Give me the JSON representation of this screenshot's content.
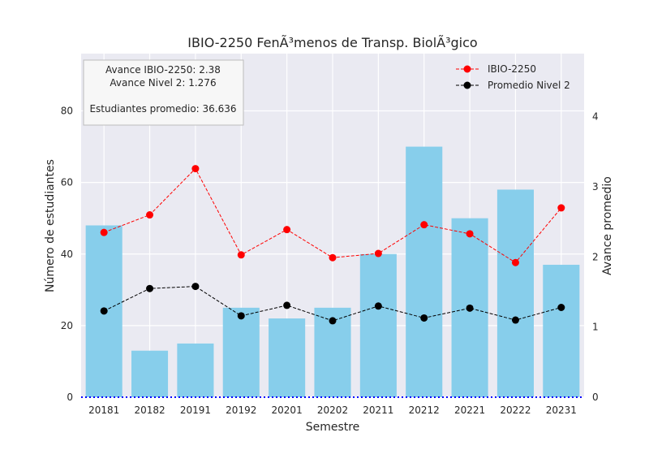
{
  "chart_data": {
    "type": "bar+line",
    "title": "IBIO-2250 FenÃ³menos de Transp. BiolÃ³gico",
    "xlabel": "Semestre",
    "ylabel_left": "Número de estudiantes",
    "ylabel_right": "Avance promedio",
    "categories": [
      "20181",
      "20182",
      "20191",
      "20192",
      "20201",
      "20202",
      "20211",
      "20212",
      "20221",
      "20222",
      "20231"
    ],
    "bars": {
      "name": "Estudiantes",
      "values": [
        48,
        13,
        15,
        25,
        22,
        25,
        40,
        70,
        50,
        58,
        37
      ],
      "color": "#87ceeb"
    },
    "lines": [
      {
        "name": "IBIO-2250",
        "values": [
          2.35,
          2.6,
          3.26,
          2.03,
          2.39,
          1.99,
          2.05,
          2.46,
          2.33,
          1.92,
          2.7
        ],
        "color": "#ff0000"
      },
      {
        "name": "Promedio Nivel 2",
        "values": [
          1.23,
          1.55,
          1.58,
          1.16,
          1.31,
          1.09,
          1.3,
          1.13,
          1.27,
          1.1,
          1.28
        ],
        "color": "#000000"
      }
    ],
    "left_axis": {
      "ylim": [
        0,
        96
      ],
      "ticks": [
        0,
        20,
        40,
        60,
        80
      ]
    },
    "right_axis": {
      "ylim": [
        0,
        4.9
      ],
      "ticks": [
        0,
        1,
        2,
        3,
        4
      ]
    },
    "reference_line": {
      "value": 0,
      "color": "#0000ff",
      "style": "dotted"
    },
    "legend": {
      "placement": "top-right",
      "entries": [
        "IBIO-2250",
        "Promedio Nivel 2"
      ]
    },
    "annotation": {
      "placement": "top-left",
      "lines": [
        "Avance IBIO-2250: 2.38",
        "Avance Nivel 2: 1.276",
        "",
        "Estudiantes promedio: 36.636"
      ]
    },
    "grid": true
  }
}
